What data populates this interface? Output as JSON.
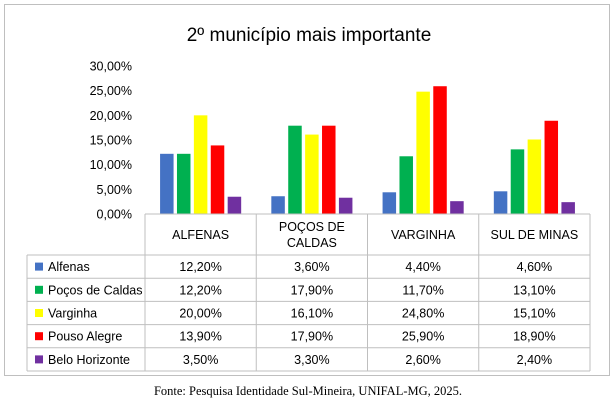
{
  "chart_data": {
    "type": "bar",
    "title": "2º município mais importante",
    "categories": [
      {
        "lines": [
          "ALFENAS"
        ]
      },
      {
        "lines": [
          "POÇOS DE",
          "CALDAS"
        ]
      },
      {
        "lines": [
          "VARGINHA"
        ]
      },
      {
        "lines": [
          "SUL DE MINAS"
        ]
      }
    ],
    "series": [
      {
        "name": "Alfenas",
        "color": "#4472c4",
        "values": [
          12.2,
          3.6,
          4.4,
          4.6
        ],
        "labels": [
          "12,20%",
          "3,60%",
          "4,40%",
          "4,60%"
        ]
      },
      {
        "name": "Poços de Caldas",
        "color": "#00b050",
        "values": [
          12.2,
          17.9,
          11.7,
          13.1
        ],
        "labels": [
          "12,20%",
          "17,90%",
          "11,70%",
          "13,10%"
        ]
      },
      {
        "name": "Varginha",
        "color": "#ffff00",
        "values": [
          20.0,
          16.1,
          24.8,
          15.1
        ],
        "labels": [
          "20,00%",
          "16,10%",
          "24,80%",
          "15,10%"
        ]
      },
      {
        "name": "Pouso Alegre",
        "color": "#ff0000",
        "values": [
          13.9,
          17.9,
          25.9,
          18.9
        ],
        "labels": [
          "13,90%",
          "17,90%",
          "25,90%",
          "18,90%"
        ]
      },
      {
        "name": "Belo Horizonte",
        "color": "#7030a0",
        "values": [
          3.5,
          3.3,
          2.6,
          2.4
        ],
        "labels": [
          "3,50%",
          "3,30%",
          "2,60%",
          "2,40%"
        ]
      }
    ],
    "yticks": [
      "0,00%",
      "5,00%",
      "10,00%",
      "15,00%",
      "20,00%",
      "25,00%",
      "30,00%"
    ],
    "ylim": [
      0,
      30
    ],
    "grid": false,
    "legend": "data-table-left"
  },
  "source": "Fonte: Pesquisa Identidade Sul-Mineira, UNIFAL-MG, 2025."
}
